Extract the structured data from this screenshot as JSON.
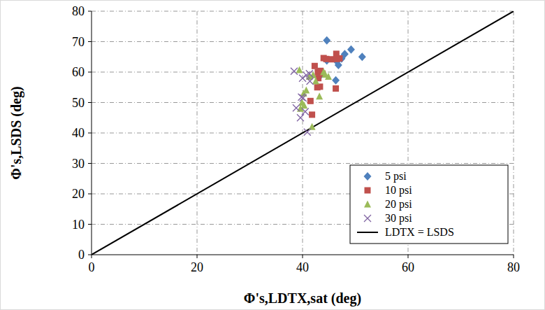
{
  "chart_data": {
    "type": "scatter",
    "x_label": "Φ's,LDTX,sat (deg)",
    "y_label": "Φ's,LSDS (deg)",
    "xlim": [
      0,
      80
    ],
    "ylim": [
      0,
      80
    ],
    "xticks": [
      0,
      20,
      40,
      60,
      80
    ],
    "yticks": [
      0,
      10,
      20,
      30,
      40,
      50,
      60,
      70,
      80
    ],
    "grid": true,
    "legend": "lower right",
    "series": [
      {
        "name": "5 psi",
        "color": "#4f81bd",
        "marker": "diamond",
        "x": [
          44.6,
          49.2,
          51.3,
          48.0,
          47.4,
          46.5,
          44.6,
          46.8,
          43.4,
          46.3,
          43.7
        ],
        "values": [
          70.4,
          67.4,
          65.0,
          65.9,
          64.4,
          63.5,
          63.8,
          62.3,
          58.9,
          57.3,
          59.7
        ]
      },
      {
        "name": "10 psi",
        "color": "#c0504d",
        "marker": "square",
        "x": [
          42.3,
          44.0,
          44.5,
          45.5,
          46.4,
          46.5,
          47.0,
          42.9,
          43.4,
          43.0,
          43.8,
          42.8,
          43.3,
          46.3,
          41.5,
          41.8
        ],
        "values": [
          62.0,
          64.6,
          64.3,
          64.2,
          66.0,
          64.3,
          64.5,
          60.0,
          60.4,
          58.0,
          59.5,
          55.0,
          55.2,
          54.6,
          50.5,
          46.0
        ]
      },
      {
        "name": "20 psi",
        "color": "#9bbb59",
        "marker": "triangle",
        "x": [
          39.4,
          42.0,
          44.0,
          44.3,
          44.9,
          42.5,
          43.2,
          40.2,
          40.7,
          39.9,
          39.6,
          40.3,
          41.8,
          41.3
        ],
        "values": [
          60.7,
          59.0,
          60.0,
          59.2,
          58.5,
          57.0,
          52.0,
          53.0,
          54.0,
          50.0,
          48.0,
          49.0,
          42.0,
          58.5
        ]
      },
      {
        "name": "30 psi",
        "color": "#8064a2",
        "marker": "x",
        "x": [
          38.4,
          40.7,
          41.4,
          40.0,
          39.8,
          40.1,
          39.6,
          40.5,
          38.8,
          40.9,
          41.3
        ],
        "values": [
          60.3,
          59.0,
          57.0,
          58.0,
          51.8,
          51.5,
          45.0,
          47.0,
          48.2,
          40.3,
          59.5
        ]
      },
      {
        "name": "LDTX = LSDS",
        "color": "#000000",
        "type": "line",
        "line_style": "solid",
        "x": [
          0,
          80
        ],
        "values": [
          0,
          80
        ]
      }
    ]
  }
}
